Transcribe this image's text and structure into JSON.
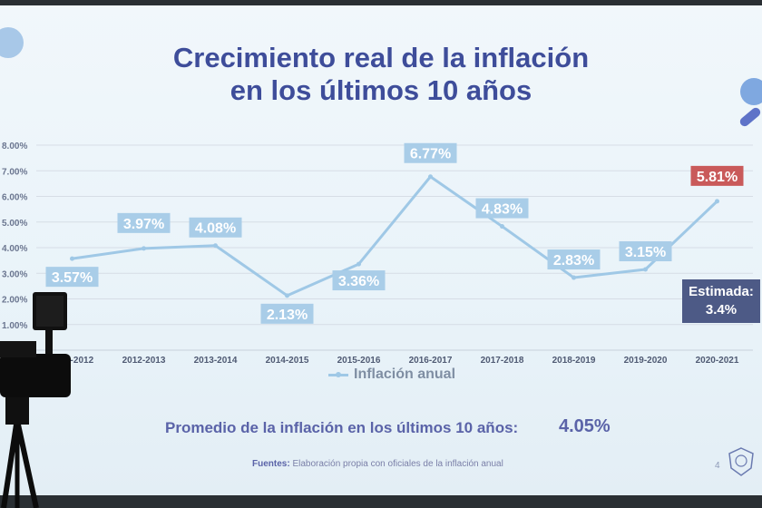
{
  "slide": {
    "title_line1": "Crecimiento real de la inflación",
    "title_line2": "en los últimos 10 años",
    "legend": "Inflación anual",
    "average_label": "Promedio de la inflación en los últimos 10 años:",
    "average_value": "4.05%",
    "source_label": "Fuentes:",
    "source_text": "Elaboración propia con oficiales de la inflación anual",
    "page_number": "4",
    "estimate_line1": "Estimada:",
    "estimate_line2": "3.4%"
  },
  "colors": {
    "title": "#3e4d9a",
    "line": "#9fc8e6",
    "label_bg": "#a9cde8",
    "highlight_bg": "#c95a5a",
    "estimate_bg": "#4d5a86"
  },
  "chart_data": {
    "type": "line",
    "categories": [
      "2011-2012",
      "2012-2013",
      "2013-2014",
      "2014-2015",
      "2015-2016",
      "2016-2017",
      "2017-2018",
      "2018-2019",
      "2019-2020",
      "2020-2021"
    ],
    "series": [
      {
        "name": "Inflación anual",
        "values": [
          3.57,
          3.97,
          4.08,
          2.13,
          3.36,
          6.77,
          4.83,
          2.83,
          3.15,
          5.81
        ]
      }
    ],
    "data_labels": [
      "3.57%",
      "3.97%",
      "4.08%",
      "2.13%",
      "3.36%",
      "6.77%",
      "4.83%",
      "2.83%",
      "3.15%",
      "5.81%"
    ],
    "y_ticks": [
      "1.00%",
      "2.00%",
      "3.00%",
      "4.00%",
      "5.00%",
      "6.00%",
      "7.00%",
      "8.00%"
    ],
    "ylim": [
      0,
      8
    ],
    "grid": true,
    "legend_position": "bottom",
    "highlight_last": true
  }
}
